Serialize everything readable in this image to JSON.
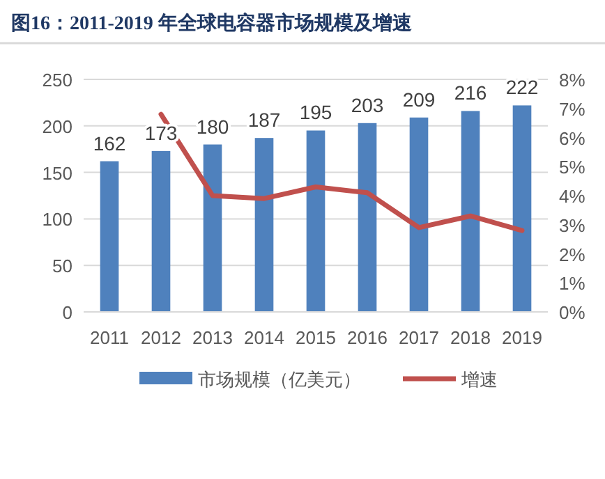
{
  "chart_data": {
    "type": "bar",
    "title": "图16：2011-2019 年全球电容器市场规模及增速",
    "categories": [
      "2011",
      "2012",
      "2013",
      "2014",
      "2015",
      "2016",
      "2017",
      "2018",
      "2019"
    ],
    "series": [
      {
        "name": "市场规模（亿美元）",
        "color": "#4f81bd",
        "values": [
          162,
          173,
          180,
          187,
          195,
          203,
          209,
          216,
          222
        ],
        "value_labels": [
          "162",
          "173",
          "180",
          "187",
          "195",
          "203",
          "209",
          "216",
          "222"
        ]
      },
      {
        "name": "增速",
        "type": "line",
        "axis": "y2",
        "color": "#c0504d",
        "values": [
          null,
          6.8,
          4.0,
          3.9,
          4.3,
          4.1,
          2.9,
          3.3,
          2.8
        ]
      }
    ],
    "ylim": [
      0,
      250
    ],
    "yticks": [
      0,
      50,
      100,
      150,
      200,
      250
    ],
    "y2lim": [
      0,
      8
    ],
    "y2ticks": [
      {
        "value": 0,
        "label": "0%"
      },
      {
        "value": 1,
        "label": "1%"
      },
      {
        "value": 2,
        "label": "2%"
      },
      {
        "value": 3,
        "label": "3%"
      },
      {
        "value": 4,
        "label": "4%"
      },
      {
        "value": 5,
        "label": "5%"
      },
      {
        "value": 6,
        "label": "6%"
      },
      {
        "value": 7,
        "label": "7%"
      },
      {
        "value": 8,
        "label": "8%"
      }
    ],
    "grid": "y",
    "legend": "bottom"
  }
}
